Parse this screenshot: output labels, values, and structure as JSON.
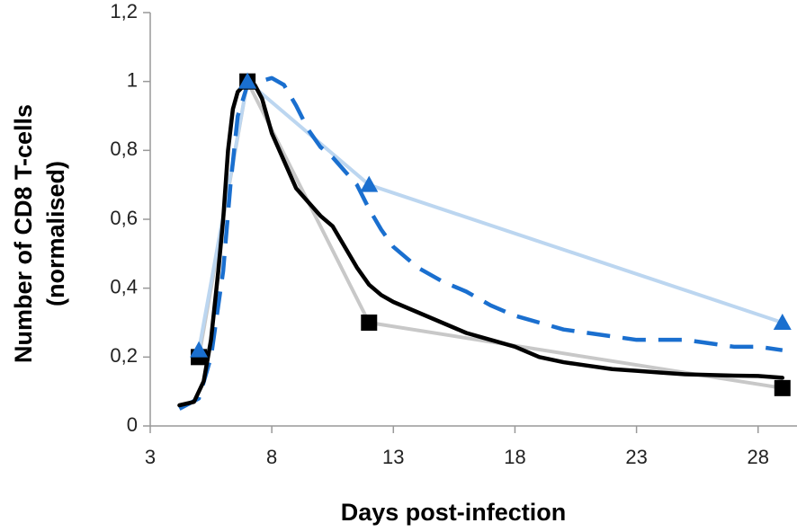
{
  "chart_data": {
    "type": "line",
    "xlabel": "Days post-infection",
    "ylabel": [
      "Number of CD8 T-cells",
      "(normalised)"
    ],
    "xlim": [
      3,
      29.6
    ],
    "xticks": [
      3,
      8,
      13,
      18,
      23,
      28
    ],
    "ylim": [
      0,
      1.2
    ],
    "yticks": [
      0,
      {
        "value": 0.2,
        "label": "0,2"
      },
      {
        "value": 0.4,
        "label": "0,4"
      },
      {
        "value": 0.6,
        "label": "0,6"
      },
      {
        "value": 0.8,
        "label": "0,8"
      },
      1,
      {
        "value": 1.2,
        "label": "1,2"
      }
    ],
    "series": [
      {
        "color": "#c8c8c8",
        "marker": "square",
        "width": 4,
        "x": [
          5,
          7,
          12,
          29
        ],
        "values": [
          0.2,
          1.0,
          0.3,
          0.11
        ]
      },
      {
        "color": "#bcd6f0",
        "marker": "triangle",
        "width": 4,
        "x": [
          5,
          7,
          12,
          29
        ],
        "values": [
          0.22,
          1.0,
          0.7,
          0.3
        ]
      },
      {
        "color": "#1a6fcf",
        "dash": true,
        "width": 4.5,
        "x": [
          4.2,
          5,
          5.5,
          6,
          6.3,
          6.6,
          7,
          7.5,
          8,
          8.5,
          9,
          9.5,
          10,
          10.5,
          11,
          11.5,
          12,
          12.5,
          13,
          14,
          15,
          16,
          17,
          18,
          19,
          20,
          21,
          22,
          23,
          24,
          25,
          26,
          27,
          28,
          29
        ],
        "values": [
          0.05,
          0.08,
          0.2,
          0.45,
          0.7,
          0.9,
          0.99,
          1.0,
          1.01,
          0.99,
          0.93,
          0.86,
          0.81,
          0.78,
          0.74,
          0.7,
          0.63,
          0.57,
          0.52,
          0.46,
          0.42,
          0.39,
          0.35,
          0.32,
          0.3,
          0.28,
          0.27,
          0.26,
          0.25,
          0.25,
          0.25,
          0.24,
          0.23,
          0.23,
          0.22
        ]
      },
      {
        "color": "#000000",
        "width": 4.5,
        "x": [
          4.2,
          4.8,
          5.2,
          5.5,
          5.8,
          6,
          6.2,
          6.4,
          6.6,
          7,
          7.3,
          7.6,
          8,
          8.5,
          9,
          9.5,
          10,
          10.5,
          11,
          11.5,
          12,
          12.5,
          13,
          14,
          15,
          16,
          17,
          18,
          19,
          20,
          21,
          22,
          23,
          24,
          25,
          26,
          27,
          28,
          29
        ],
        "values": [
          0.06,
          0.07,
          0.13,
          0.25,
          0.45,
          0.6,
          0.8,
          0.92,
          0.97,
          1.0,
          0.99,
          0.95,
          0.85,
          0.77,
          0.69,
          0.65,
          0.61,
          0.58,
          0.52,
          0.46,
          0.41,
          0.38,
          0.36,
          0.33,
          0.3,
          0.27,
          0.25,
          0.23,
          0.2,
          0.185,
          0.175,
          0.165,
          0.16,
          0.155,
          0.15,
          0.148,
          0.146,
          0.145,
          0.14
        ]
      }
    ]
  }
}
